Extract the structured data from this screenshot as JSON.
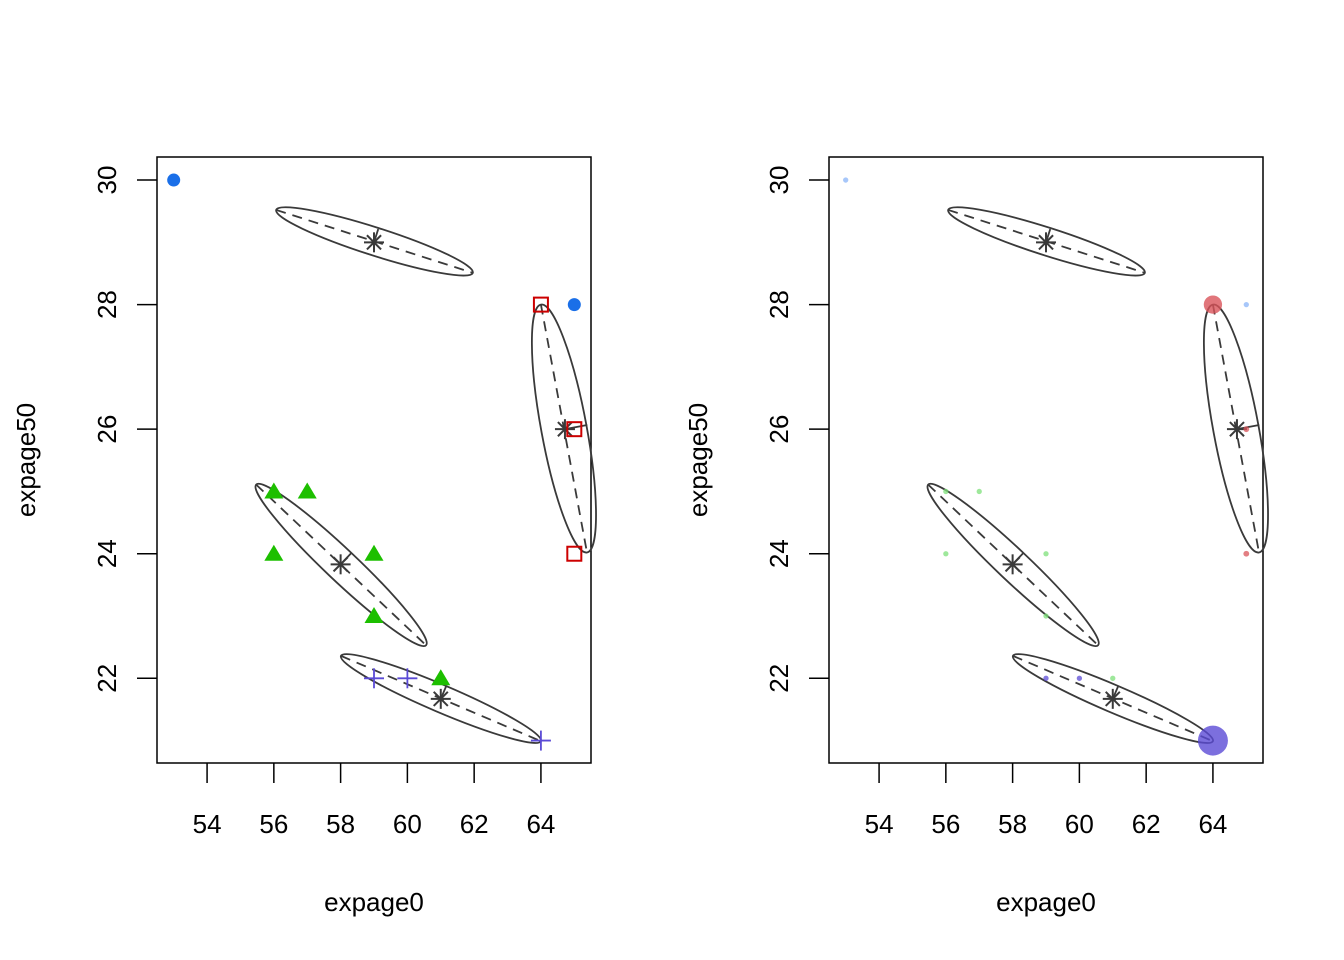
{
  "chart_data": [
    {
      "type": "scatter",
      "panel": "left",
      "title": "",
      "xlabel": "expage0",
      "ylabel": "expage50",
      "xlim": [
        52.5,
        65.5
      ],
      "ylim": [
        20.64,
        30.37
      ],
      "xticks": [
        54,
        56,
        58,
        60,
        62,
        64
      ],
      "yticks": [
        22,
        24,
        26,
        28,
        30
      ],
      "grid": false,
      "legend": "none",
      "point_size_mode": "fixed",
      "series": [
        {
          "name": "cluster-1",
          "marker": "filled-circle",
          "color": "#1A6FE8",
          "points": [
            {
              "x": 53,
              "y": 30
            },
            {
              "x": 65,
              "y": 28
            }
          ]
        },
        {
          "name": "cluster-2",
          "marker": "open-square",
          "color": "#CC0000",
          "points": [
            {
              "x": 64,
              "y": 28
            },
            {
              "x": 65,
              "y": 26
            },
            {
              "x": 65,
              "y": 24
            }
          ]
        },
        {
          "name": "cluster-3",
          "marker": "filled-triangle",
          "color": "#1DBF00",
          "points": [
            {
              "x": 56,
              "y": 25
            },
            {
              "x": 57,
              "y": 25
            },
            {
              "x": 56,
              "y": 24
            },
            {
              "x": 59,
              "y": 24
            },
            {
              "x": 59,
              "y": 23
            },
            {
              "x": 61,
              "y": 22
            }
          ]
        },
        {
          "name": "cluster-4",
          "marker": "plus",
          "color": "#5B4BD6",
          "points": [
            {
              "x": 59,
              "y": 22
            },
            {
              "x": 60,
              "y": 22
            },
            {
              "x": 64,
              "y": 21
            }
          ]
        }
      ],
      "ellipses": [
        {
          "center": {
            "x": 59,
            "y": 29
          },
          "major_end_a": {
            "x": 56.07,
            "y": 29.52
          },
          "major_end_b": {
            "x": 61.96,
            "y": 28.51
          }
        },
        {
          "center": {
            "x": 64.72,
            "y": 26.0
          },
          "major_end_a": {
            "x": 64.0,
            "y": 28.0
          },
          "major_end_b": {
            "x": 65.38,
            "y": 24.02
          }
        },
        {
          "center": {
            "x": 58.0,
            "y": 23.83
          },
          "major_end_a": {
            "x": 55.47,
            "y": 25.11
          },
          "major_end_b": {
            "x": 60.56,
            "y": 22.53
          }
        },
        {
          "center": {
            "x": 61.0,
            "y": 21.67
          },
          "major_end_a": {
            "x": 58.01,
            "y": 22.36
          },
          "major_end_b": {
            "x": 64.0,
            "y": 20.99
          }
        }
      ]
    },
    {
      "type": "scatter",
      "panel": "right",
      "title": "",
      "xlabel": "expage0",
      "ylabel": "expage50",
      "xlim": [
        52.5,
        65.5
      ],
      "ylim": [
        20.64,
        30.37
      ],
      "xticks": [
        54,
        56,
        58,
        60,
        62,
        64
      ],
      "yticks": [
        22,
        24,
        26,
        28,
        30
      ],
      "grid": false,
      "legend": "none",
      "point_size_mode": "weighted",
      "series": [
        {
          "name": "cluster-1",
          "marker": "filled-circle",
          "color": "#8AB4F8",
          "points": [
            {
              "x": 53,
              "y": 30,
              "weight": 0.05
            },
            {
              "x": 65,
              "y": 28,
              "weight": 0.05
            }
          ]
        },
        {
          "name": "cluster-2",
          "marker": "filled-circle",
          "color": "#D9545A",
          "points": [
            {
              "x": 64,
              "y": 28,
              "weight": 0.55
            },
            {
              "x": 65,
              "y": 26,
              "weight": 0.07
            },
            {
              "x": 65,
              "y": 24,
              "weight": 0.07
            }
          ]
        },
        {
          "name": "cluster-3",
          "marker": "filled-circle",
          "color": "#7EE07A",
          "points": [
            {
              "x": 56,
              "y": 25,
              "weight": 0.05
            },
            {
              "x": 57,
              "y": 25,
              "weight": 0.05
            },
            {
              "x": 56,
              "y": 24,
              "weight": 0.05
            },
            {
              "x": 59,
              "y": 24,
              "weight": 0.05
            },
            {
              "x": 59,
              "y": 23,
              "weight": 0.05
            },
            {
              "x": 61,
              "y": 22,
              "weight": 0.05
            }
          ]
        },
        {
          "name": "cluster-4",
          "marker": "filled-circle",
          "color": "#5B4BD6",
          "points": [
            {
              "x": 59,
              "y": 22,
              "weight": 0.05
            },
            {
              "x": 60,
              "y": 22,
              "weight": 0.05
            },
            {
              "x": 64,
              "y": 21,
              "weight": 1.0
            }
          ]
        }
      ],
      "ellipses": [
        {
          "center": {
            "x": 59,
            "y": 29
          },
          "major_end_a": {
            "x": 56.07,
            "y": 29.52
          },
          "major_end_b": {
            "x": 61.96,
            "y": 28.51
          }
        },
        {
          "center": {
            "x": 64.72,
            "y": 26.0
          },
          "major_end_a": {
            "x": 64.0,
            "y": 28.0
          },
          "major_end_b": {
            "x": 65.38,
            "y": 24.02
          }
        },
        {
          "center": {
            "x": 58.0,
            "y": 23.83
          },
          "major_end_a": {
            "x": 55.47,
            "y": 25.11
          },
          "major_end_b": {
            "x": 60.56,
            "y": 22.53
          }
        },
        {
          "center": {
            "x": 61.0,
            "y": 21.67
          },
          "major_end_a": {
            "x": 58.01,
            "y": 22.36
          },
          "major_end_b": {
            "x": 64.0,
            "y": 20.99
          }
        }
      ]
    }
  ]
}
